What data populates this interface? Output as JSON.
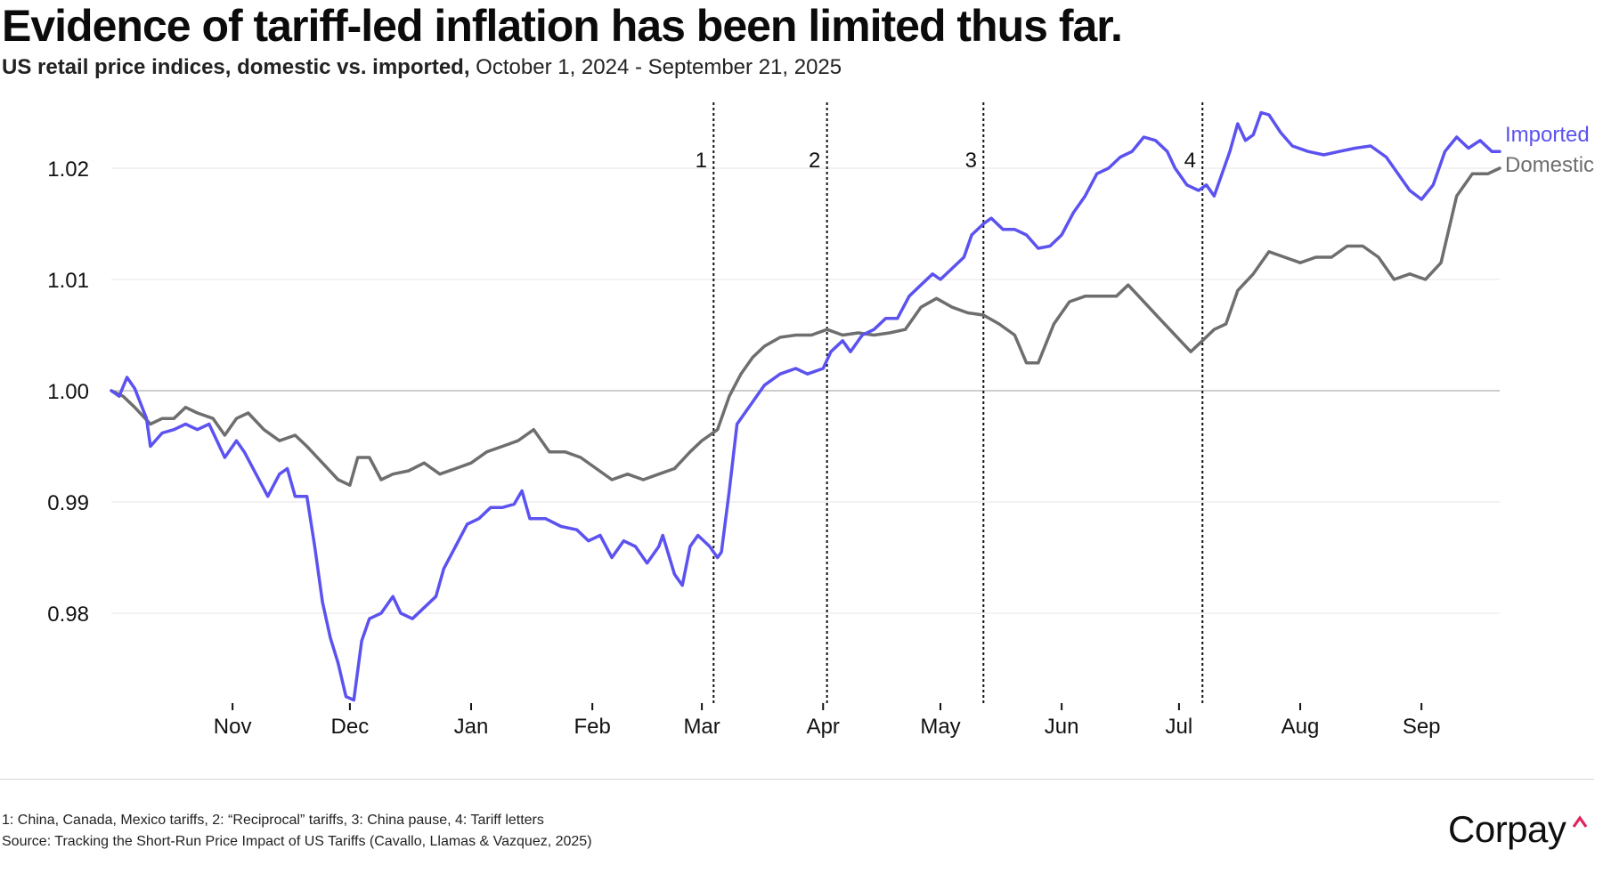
{
  "title": "Evidence of tariff-led inflation has been limited thus far.",
  "subtitle": {
    "bold": "US retail price indices, domestic vs. imported,",
    "regular": " October 1, 2024 - September 21, 2025"
  },
  "footer": {
    "note": "1: China, Canada, Mexico tariffs, 2: “Reciprocal” tariffs, 3: China pause, 4: Tariff letters",
    "source": "Source: Tracking the Short-Run Price Impact of US Tariffs (Cavallo, Llamas & Vazquez, 2025)"
  },
  "logo": {
    "text": "Corpay",
    "caret_color": "#e0245e"
  },
  "colors": {
    "imported": "#5b52f0",
    "domestic": "#6e6e6e",
    "grid": "#e6e6e6",
    "baseline": "#bdbdbd",
    "event_line": "#111111"
  },
  "chart_data": {
    "type": "line",
    "title": "Evidence of tariff-led inflation has been limited thus far.",
    "subtitle": "US retail price indices, domestic vs. imported, October 1, 2024 - September 21, 2025",
    "xlabel": "",
    "ylabel": "",
    "xlim": [
      "2024-10-01",
      "2025-09-21"
    ],
    "ylim": [
      0.9715,
      1.026
    ],
    "grid": "horizontal",
    "legend": "inline labels at right end of lines",
    "y_ticks": [
      0.98,
      0.99,
      1.0,
      1.01,
      1.02
    ],
    "y_tick_labels": [
      "0.98",
      "0.99",
      "1.00",
      "1.01",
      "1.02"
    ],
    "x_ticks": [
      {
        "date": "2024-11-01",
        "label": "Nov"
      },
      {
        "date": "2024-12-01",
        "label": "Dec"
      },
      {
        "date": "2025-01-01",
        "label": "Jan"
      },
      {
        "date": "2025-02-01",
        "label": "Feb"
      },
      {
        "date": "2025-03-01",
        "label": "Mar"
      },
      {
        "date": "2025-04-01",
        "label": "Apr"
      },
      {
        "date": "2025-05-01",
        "label": "May"
      },
      {
        "date": "2025-06-01",
        "label": "Jun"
      },
      {
        "date": "2025-07-01",
        "label": "Jul"
      },
      {
        "date": "2025-08-01",
        "label": "Aug"
      },
      {
        "date": "2025-09-01",
        "label": "Sep"
      }
    ],
    "events": [
      {
        "date": "2025-03-04",
        "label": "1"
      },
      {
        "date": "2025-04-02",
        "label": "2"
      },
      {
        "date": "2025-05-12",
        "label": "3"
      },
      {
        "date": "2025-07-07",
        "label": "4"
      }
    ],
    "series": [
      {
        "name": "Imported",
        "points": [
          [
            "2024-10-01",
            1.0
          ],
          [
            "2024-10-03",
            0.9995
          ],
          [
            "2024-10-05",
            1.0012
          ],
          [
            "2024-10-07",
            1.0002
          ],
          [
            "2024-10-10",
            0.9975
          ],
          [
            "2024-10-11",
            0.995
          ],
          [
            "2024-10-14",
            0.9962
          ],
          [
            "2024-10-17",
            0.9965
          ],
          [
            "2024-10-20",
            0.997
          ],
          [
            "2024-10-23",
            0.9965
          ],
          [
            "2024-10-26",
            0.997
          ],
          [
            "2024-10-28",
            0.9955
          ],
          [
            "2024-10-30",
            0.994
          ],
          [
            "2024-11-02",
            0.9955
          ],
          [
            "2024-11-04",
            0.9945
          ],
          [
            "2024-11-07",
            0.9925
          ],
          [
            "2024-11-10",
            0.9905
          ],
          [
            "2024-11-13",
            0.9925
          ],
          [
            "2024-11-15",
            0.993
          ],
          [
            "2024-11-17",
            0.9905
          ],
          [
            "2024-11-20",
            0.9905
          ],
          [
            "2024-11-22",
            0.986
          ],
          [
            "2024-11-24",
            0.981
          ],
          [
            "2024-11-26",
            0.9778
          ],
          [
            "2024-11-28",
            0.9755
          ],
          [
            "2024-11-30",
            0.9725
          ],
          [
            "2024-12-02",
            0.9722
          ],
          [
            "2024-12-04",
            0.9775
          ],
          [
            "2024-12-06",
            0.9795
          ],
          [
            "2024-12-09",
            0.98
          ],
          [
            "2024-12-12",
            0.9815
          ],
          [
            "2024-12-14",
            0.98
          ],
          [
            "2024-12-17",
            0.9795
          ],
          [
            "2024-12-20",
            0.9805
          ],
          [
            "2024-12-23",
            0.9815
          ],
          [
            "2024-12-25",
            0.984
          ],
          [
            "2024-12-28",
            0.986
          ],
          [
            "2024-12-31",
            0.988
          ],
          [
            "2025-01-03",
            0.9885
          ],
          [
            "2025-01-06",
            0.9895
          ],
          [
            "2025-01-09",
            0.9895
          ],
          [
            "2025-01-12",
            0.9898
          ],
          [
            "2025-01-14",
            0.991
          ],
          [
            "2025-01-16",
            0.9885
          ],
          [
            "2025-01-20",
            0.9885
          ],
          [
            "2025-01-24",
            0.9878
          ],
          [
            "2025-01-28",
            0.9875
          ],
          [
            "2025-01-31",
            0.9865
          ],
          [
            "2025-02-03",
            0.987
          ],
          [
            "2025-02-06",
            0.985
          ],
          [
            "2025-02-09",
            0.9865
          ],
          [
            "2025-02-12",
            0.986
          ],
          [
            "2025-02-15",
            0.9845
          ],
          [
            "2025-02-18",
            0.986
          ],
          [
            "2025-02-19",
            0.987
          ],
          [
            "2025-02-22",
            0.9835
          ],
          [
            "2025-02-24",
            0.9825
          ],
          [
            "2025-02-26",
            0.986
          ],
          [
            "2025-02-28",
            0.987
          ],
          [
            "2025-03-03",
            0.986
          ],
          [
            "2025-03-05",
            0.985
          ],
          [
            "2025-03-06",
            0.9855
          ],
          [
            "2025-03-08",
            0.991
          ],
          [
            "2025-03-10",
            0.997
          ],
          [
            "2025-03-13",
            0.9985
          ],
          [
            "2025-03-17",
            1.0005
          ],
          [
            "2025-03-21",
            1.0015
          ],
          [
            "2025-03-25",
            1.002
          ],
          [
            "2025-03-28",
            1.0015
          ],
          [
            "2025-04-01",
            1.002
          ],
          [
            "2025-04-03",
            1.0035
          ],
          [
            "2025-04-06",
            1.0045
          ],
          [
            "2025-04-08",
            1.0035
          ],
          [
            "2025-04-11",
            1.005
          ],
          [
            "2025-04-14",
            1.0055
          ],
          [
            "2025-04-17",
            1.0065
          ],
          [
            "2025-04-20",
            1.0065
          ],
          [
            "2025-04-23",
            1.0085
          ],
          [
            "2025-04-26",
            1.0095
          ],
          [
            "2025-04-29",
            1.0105
          ],
          [
            "2025-05-01",
            1.01
          ],
          [
            "2025-05-04",
            1.011
          ],
          [
            "2025-05-07",
            1.012
          ],
          [
            "2025-05-09",
            1.014
          ],
          [
            "2025-05-12",
            1.015
          ],
          [
            "2025-05-14",
            1.0155
          ],
          [
            "2025-05-17",
            1.0145
          ],
          [
            "2025-05-20",
            1.0145
          ],
          [
            "2025-05-23",
            1.014
          ],
          [
            "2025-05-26",
            1.0128
          ],
          [
            "2025-05-29",
            1.013
          ],
          [
            "2025-06-01",
            1.014
          ],
          [
            "2025-06-04",
            1.016
          ],
          [
            "2025-06-07",
            1.0175
          ],
          [
            "2025-06-10",
            1.0195
          ],
          [
            "2025-06-13",
            1.02
          ],
          [
            "2025-06-16",
            1.021
          ],
          [
            "2025-06-19",
            1.0215
          ],
          [
            "2025-06-22",
            1.0228
          ],
          [
            "2025-06-25",
            1.0225
          ],
          [
            "2025-06-28",
            1.0215
          ],
          [
            "2025-06-30",
            1.02
          ],
          [
            "2025-07-03",
            1.0185
          ],
          [
            "2025-07-06",
            1.018
          ],
          [
            "2025-07-08",
            1.0185
          ],
          [
            "2025-07-10",
            1.0175
          ],
          [
            "2025-07-12",
            1.0195
          ],
          [
            "2025-07-14",
            1.0215
          ],
          [
            "2025-07-16",
            1.024
          ],
          [
            "2025-07-18",
            1.0225
          ],
          [
            "2025-07-20",
            1.023
          ],
          [
            "2025-07-22",
            1.025
          ],
          [
            "2025-07-24",
            1.0248
          ],
          [
            "2025-07-27",
            1.0232
          ],
          [
            "2025-07-30",
            1.022
          ],
          [
            "2025-08-03",
            1.0215
          ],
          [
            "2025-08-07",
            1.0212
          ],
          [
            "2025-08-11",
            1.0215
          ],
          [
            "2025-08-15",
            1.0218
          ],
          [
            "2025-08-19",
            1.022
          ],
          [
            "2025-08-23",
            1.021
          ],
          [
            "2025-08-26",
            1.0195
          ],
          [
            "2025-08-29",
            1.018
          ],
          [
            "2025-09-01",
            1.0172
          ],
          [
            "2025-09-04",
            1.0185
          ],
          [
            "2025-09-07",
            1.0215
          ],
          [
            "2025-09-10",
            1.0228
          ],
          [
            "2025-09-13",
            1.0218
          ],
          [
            "2025-09-16",
            1.0225
          ],
          [
            "2025-09-19",
            1.0215
          ],
          [
            "2025-09-21",
            1.0215
          ]
        ]
      },
      {
        "name": "Domestic",
        "points": [
          [
            "2024-10-01",
            1.0
          ],
          [
            "2024-10-04",
            0.9995
          ],
          [
            "2024-10-07",
            0.9985
          ],
          [
            "2024-10-11",
            0.997
          ],
          [
            "2024-10-14",
            0.9975
          ],
          [
            "2024-10-17",
            0.9975
          ],
          [
            "2024-10-20",
            0.9985
          ],
          [
            "2024-10-23",
            0.998
          ],
          [
            "2024-10-27",
            0.9975
          ],
          [
            "2024-10-30",
            0.996
          ],
          [
            "2024-11-02",
            0.9975
          ],
          [
            "2024-11-05",
            0.998
          ],
          [
            "2024-11-09",
            0.9965
          ],
          [
            "2024-11-13",
            0.9955
          ],
          [
            "2024-11-17",
            0.996
          ],
          [
            "2024-11-20",
            0.995
          ],
          [
            "2024-11-24",
            0.9935
          ],
          [
            "2024-11-28",
            0.992
          ],
          [
            "2024-12-01",
            0.9915
          ],
          [
            "2024-12-03",
            0.994
          ],
          [
            "2024-12-06",
            0.994
          ],
          [
            "2024-12-09",
            0.992
          ],
          [
            "2024-12-12",
            0.9925
          ],
          [
            "2024-12-16",
            0.9928
          ],
          [
            "2024-12-20",
            0.9935
          ],
          [
            "2024-12-24",
            0.9925
          ],
          [
            "2024-12-28",
            0.993
          ],
          [
            "2025-01-01",
            0.9935
          ],
          [
            "2025-01-05",
            0.9945
          ],
          [
            "2025-01-09",
            0.995
          ],
          [
            "2025-01-13",
            0.9955
          ],
          [
            "2025-01-17",
            0.9965
          ],
          [
            "2025-01-21",
            0.9945
          ],
          [
            "2025-01-25",
            0.9945
          ],
          [
            "2025-01-29",
            0.994
          ],
          [
            "2025-02-02",
            0.993
          ],
          [
            "2025-02-06",
            0.992
          ],
          [
            "2025-02-10",
            0.9925
          ],
          [
            "2025-02-14",
            0.992
          ],
          [
            "2025-02-18",
            0.9925
          ],
          [
            "2025-02-22",
            0.993
          ],
          [
            "2025-02-26",
            0.9945
          ],
          [
            "2025-03-01",
            0.9955
          ],
          [
            "2025-03-03",
            0.996
          ],
          [
            "2025-03-05",
            0.9965
          ],
          [
            "2025-03-08",
            0.9995
          ],
          [
            "2025-03-11",
            1.0015
          ],
          [
            "2025-03-14",
            1.003
          ],
          [
            "2025-03-17",
            1.004
          ],
          [
            "2025-03-21",
            1.0048
          ],
          [
            "2025-03-25",
            1.005
          ],
          [
            "2025-03-29",
            1.005
          ],
          [
            "2025-04-02",
            1.0055
          ],
          [
            "2025-04-06",
            1.005
          ],
          [
            "2025-04-10",
            1.0052
          ],
          [
            "2025-04-14",
            1.005
          ],
          [
            "2025-04-18",
            1.0052
          ],
          [
            "2025-04-22",
            1.0055
          ],
          [
            "2025-04-26",
            1.0075
          ],
          [
            "2025-04-30",
            1.0083
          ],
          [
            "2025-05-04",
            1.0075
          ],
          [
            "2025-05-08",
            1.007
          ],
          [
            "2025-05-12",
            1.0068
          ],
          [
            "2025-05-16",
            1.006
          ],
          [
            "2025-05-20",
            1.005
          ],
          [
            "2025-05-23",
            1.0025
          ],
          [
            "2025-05-26",
            1.0025
          ],
          [
            "2025-05-30",
            1.006
          ],
          [
            "2025-06-03",
            1.008
          ],
          [
            "2025-06-07",
            1.0085
          ],
          [
            "2025-06-11",
            1.0085
          ],
          [
            "2025-06-15",
            1.0085
          ],
          [
            "2025-06-18",
            1.0095
          ],
          [
            "2025-06-22",
            1.008
          ],
          [
            "2025-06-26",
            1.0065
          ],
          [
            "2025-06-30",
            1.005
          ],
          [
            "2025-07-04",
            1.0035
          ],
          [
            "2025-07-07",
            1.0045
          ],
          [
            "2025-07-10",
            1.0055
          ],
          [
            "2025-07-13",
            1.006
          ],
          [
            "2025-07-16",
            1.009
          ],
          [
            "2025-07-20",
            1.0105
          ],
          [
            "2025-07-24",
            1.0125
          ],
          [
            "2025-07-28",
            1.012
          ],
          [
            "2025-08-01",
            1.0115
          ],
          [
            "2025-08-05",
            1.012
          ],
          [
            "2025-08-09",
            1.012
          ],
          [
            "2025-08-13",
            1.013
          ],
          [
            "2025-08-17",
            1.013
          ],
          [
            "2025-08-21",
            1.012
          ],
          [
            "2025-08-25",
            1.01
          ],
          [
            "2025-08-29",
            1.0105
          ],
          [
            "2025-09-02",
            1.01
          ],
          [
            "2025-09-06",
            1.0115
          ],
          [
            "2025-09-10",
            1.0175
          ],
          [
            "2025-09-14",
            1.0195
          ],
          [
            "2025-09-18",
            1.0195
          ],
          [
            "2025-09-21",
            1.02
          ]
        ]
      }
    ]
  }
}
